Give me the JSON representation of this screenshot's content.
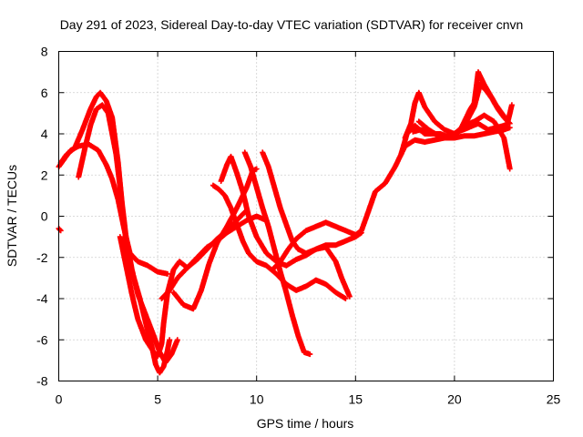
{
  "chart_data": {
    "type": "scatter",
    "title": "Day 291 of 2023, Sidereal Day-to-day VTEC variation (SDTVAR) for receiver cnvn",
    "xlabel": "GPS time / hours",
    "ylabel": "SDTVAR / TECUs",
    "xlim": [
      0,
      25
    ],
    "ylim": [
      -8,
      8
    ],
    "xticks": [
      0,
      5,
      10,
      15,
      20,
      25
    ],
    "yticks": [
      -8,
      -6,
      -4,
      -2,
      0,
      2,
      4,
      6,
      8
    ],
    "xtick_labels": [
      "0",
      "5",
      "10",
      "15",
      "20",
      "25"
    ],
    "ytick_labels": [
      "-8",
      "-6",
      "-4",
      "-2",
      "0",
      "2",
      "4",
      "6",
      "8"
    ],
    "grid": true,
    "legend": "none",
    "marker": "plus",
    "color": "#ff0000",
    "series": [
      {
        "points": [
          [
            0.0,
            -0.6
          ],
          [
            0.1,
            -0.7
          ]
        ]
      },
      {
        "points": [
          [
            0.0,
            2.4
          ],
          [
            0.3,
            2.8
          ],
          [
            0.6,
            3.2
          ],
          [
            1.0,
            3.4
          ],
          [
            1.5,
            3.5
          ],
          [
            2.0,
            3.2
          ],
          [
            2.4,
            2.5
          ],
          [
            2.7,
            1.8
          ],
          [
            3.0,
            0.8
          ],
          [
            3.3,
            -0.6
          ],
          [
            3.6,
            -1.8
          ],
          [
            4.0,
            -2.2
          ],
          [
            4.5,
            -2.4
          ],
          [
            5.0,
            -2.7
          ],
          [
            5.5,
            -2.8
          ]
        ]
      },
      {
        "points": [
          [
            0.1,
            2.6
          ],
          [
            0.4,
            3.0
          ],
          [
            0.8,
            3.3
          ],
          [
            1.2,
            4.2
          ],
          [
            1.6,
            5.2
          ],
          [
            1.9,
            5.8
          ],
          [
            2.1,
            6.0
          ],
          [
            2.4,
            5.6
          ],
          [
            2.7,
            4.8
          ],
          [
            3.0,
            2.6
          ],
          [
            3.2,
            0.6
          ],
          [
            3.4,
            -1.0
          ],
          [
            3.7,
            -2.6
          ],
          [
            4.0,
            -3.8
          ],
          [
            4.4,
            -4.8
          ],
          [
            4.8,
            -5.8
          ],
          [
            5.1,
            -6.6
          ],
          [
            5.4,
            -7.1
          ],
          [
            5.7,
            -6.7
          ],
          [
            6.0,
            -6.0
          ]
        ]
      },
      {
        "points": [
          [
            1.0,
            1.9
          ],
          [
            1.3,
            3.2
          ],
          [
            1.6,
            4.4
          ],
          [
            1.9,
            5.2
          ],
          [
            2.2,
            5.4
          ],
          [
            2.5,
            5.0
          ],
          [
            2.7,
            4.0
          ],
          [
            2.9,
            3.0
          ],
          [
            3.1,
            1.4
          ],
          [
            3.3,
            -0.4
          ],
          [
            3.5,
            -2.0
          ],
          [
            3.8,
            -3.0
          ],
          [
            4.1,
            -4.0
          ],
          [
            4.4,
            -5.2
          ],
          [
            4.7,
            -6.3
          ],
          [
            4.9,
            -7.2
          ],
          [
            5.1,
            -7.6
          ],
          [
            5.3,
            -7.3
          ],
          [
            5.5,
            -6.5
          ],
          [
            5.6,
            -6.0
          ]
        ]
      },
      {
        "points": [
          [
            3.1,
            -1.0
          ],
          [
            3.4,
            -2.4
          ],
          [
            3.7,
            -3.8
          ],
          [
            4.0,
            -5.0
          ],
          [
            4.4,
            -6.0
          ],
          [
            4.8,
            -6.6
          ],
          [
            5.0,
            -6.8
          ],
          [
            5.2,
            -6.2
          ],
          [
            5.3,
            -5.2
          ],
          [
            5.5,
            -3.7
          ],
          [
            5.8,
            -2.6
          ],
          [
            6.1,
            -2.2
          ],
          [
            6.5,
            -2.5
          ],
          [
            7.0,
            -2.1
          ],
          [
            7.5,
            -1.6
          ],
          [
            8.0,
            -1.1
          ],
          [
            8.5,
            -0.7
          ],
          [
            9.0,
            -0.2
          ],
          [
            9.4,
            0.2
          ]
        ]
      },
      {
        "points": [
          [
            5.2,
            -4.0
          ],
          [
            5.6,
            -3.6
          ],
          [
            6.0,
            -3.0
          ],
          [
            6.5,
            -2.5
          ],
          [
            7.0,
            -2.0
          ],
          [
            7.5,
            -1.5
          ],
          [
            8.0,
            -1.2
          ],
          [
            8.5,
            -0.8
          ],
          [
            9.0,
            -0.5
          ],
          [
            9.5,
            -0.2
          ],
          [
            10.0,
            0.0
          ],
          [
            10.5,
            -0.2
          ]
        ]
      },
      {
        "points": [
          [
            5.8,
            -3.7
          ],
          [
            6.3,
            -4.3
          ],
          [
            6.8,
            -4.5
          ],
          [
            7.2,
            -3.6
          ],
          [
            7.6,
            -2.3
          ],
          [
            8.0,
            -1.3
          ],
          [
            8.5,
            -0.5
          ],
          [
            9.0,
            0.4
          ],
          [
            9.5,
            1.4
          ],
          [
            9.8,
            2.2
          ],
          [
            10.0,
            2.3
          ]
        ]
      },
      {
        "points": [
          [
            7.8,
            1.5
          ],
          [
            8.1,
            1.3
          ],
          [
            8.4,
            1.0
          ],
          [
            8.7,
            0.4
          ],
          [
            9.0,
            -0.4
          ],
          [
            9.3,
            -1.2
          ],
          [
            9.6,
            -1.8
          ],
          [
            10.0,
            -2.2
          ],
          [
            10.5,
            -2.4
          ],
          [
            11.0,
            -2.8
          ],
          [
            11.5,
            -3.3
          ],
          [
            12.0,
            -3.6
          ],
          [
            12.5,
            -3.4
          ],
          [
            13.0,
            -3.1
          ],
          [
            13.5,
            -3.3
          ],
          [
            14.0,
            -3.7
          ],
          [
            14.5,
            -4.0
          ]
        ]
      },
      {
        "points": [
          [
            8.2,
            1.7
          ],
          [
            8.5,
            2.5
          ],
          [
            8.7,
            2.9
          ],
          [
            9.0,
            2.1
          ],
          [
            9.3,
            1.2
          ],
          [
            9.6,
            0.0
          ],
          [
            10.0,
            -1.0
          ],
          [
            10.5,
            -1.8
          ],
          [
            11.0,
            -2.2
          ],
          [
            11.5,
            -2.4
          ],
          [
            12.0,
            -2.1
          ],
          [
            12.5,
            -1.9
          ],
          [
            13.0,
            -1.6
          ],
          [
            13.5,
            -1.5
          ],
          [
            14.0,
            -2.2
          ],
          [
            14.3,
            -3.0
          ],
          [
            14.7,
            -3.9
          ]
        ]
      },
      {
        "points": [
          [
            9.4,
            3.1
          ],
          [
            9.7,
            2.4
          ],
          [
            10.0,
            1.4
          ],
          [
            10.3,
            0.4
          ],
          [
            10.6,
            -0.5
          ],
          [
            10.9,
            -1.6
          ],
          [
            11.2,
            -2.7
          ],
          [
            11.5,
            -3.7
          ],
          [
            11.8,
            -4.8
          ],
          [
            12.1,
            -5.8
          ],
          [
            12.4,
            -6.6
          ],
          [
            12.7,
            -6.7
          ]
        ]
      },
      {
        "points": [
          [
            10.3,
            3.1
          ],
          [
            10.6,
            2.4
          ],
          [
            10.9,
            1.4
          ],
          [
            11.2,
            0.4
          ],
          [
            11.5,
            -0.4
          ],
          [
            11.8,
            -1.2
          ],
          [
            12.1,
            -1.6
          ],
          [
            12.5,
            -1.8
          ],
          [
            13.0,
            -1.6
          ],
          [
            13.5,
            -1.4
          ],
          [
            14.0,
            -1.4
          ],
          [
            14.5,
            -1.2
          ],
          [
            15.0,
            -1.0
          ],
          [
            15.3,
            -0.8
          ]
        ]
      },
      {
        "points": [
          [
            10.8,
            -2.6
          ],
          [
            11.2,
            -2.2
          ],
          [
            11.6,
            -1.6
          ],
          [
            12.0,
            -1.1
          ],
          [
            12.5,
            -0.7
          ],
          [
            13.0,
            -0.5
          ],
          [
            13.5,
            -0.3
          ],
          [
            14.0,
            -0.5
          ],
          [
            14.5,
            -0.7
          ],
          [
            15.0,
            -0.9
          ],
          [
            15.3,
            -0.7
          ],
          [
            15.6,
            0.1
          ],
          [
            16.0,
            1.2
          ],
          [
            16.5,
            1.6
          ],
          [
            17.0,
            2.4
          ],
          [
            17.5,
            3.4
          ],
          [
            18.0,
            3.7
          ],
          [
            18.5,
            3.6
          ],
          [
            19.0,
            3.7
          ],
          [
            19.5,
            3.8
          ],
          [
            20.0,
            3.8
          ],
          [
            20.5,
            3.9
          ],
          [
            21.0,
            3.9
          ],
          [
            21.5,
            4.0
          ],
          [
            22.0,
            4.1
          ],
          [
            22.5,
            4.2
          ],
          [
            22.8,
            4.3
          ]
        ]
      },
      {
        "points": [
          [
            17.3,
            3.0
          ],
          [
            17.6,
            4.0
          ],
          [
            18.0,
            4.4
          ],
          [
            18.5,
            4.0
          ],
          [
            19.0,
            4.0
          ],
          [
            19.5,
            3.8
          ],
          [
            20.0,
            4.0
          ],
          [
            20.5,
            4.4
          ],
          [
            21.0,
            4.6
          ],
          [
            21.5,
            4.9
          ],
          [
            22.0,
            4.6
          ],
          [
            22.5,
            3.8
          ],
          [
            22.8,
            2.3
          ]
        ]
      },
      {
        "points": [
          [
            17.5,
            3.8
          ],
          [
            17.8,
            4.5
          ],
          [
            18.0,
            5.5
          ],
          [
            18.2,
            6.0
          ],
          [
            18.5,
            5.3
          ],
          [
            19.0,
            4.6
          ],
          [
            19.5,
            4.2
          ],
          [
            20.0,
            4.0
          ],
          [
            20.5,
            4.4
          ],
          [
            21.0,
            5.3
          ],
          [
            21.3,
            6.4
          ],
          [
            21.6,
            6.1
          ],
          [
            21.9,
            5.7
          ],
          [
            22.2,
            5.2
          ],
          [
            22.5,
            4.8
          ],
          [
            22.8,
            4.5
          ]
        ]
      },
      {
        "points": [
          [
            17.9,
            4.1
          ],
          [
            18.3,
            4.2
          ],
          [
            18.8,
            4.0
          ],
          [
            19.3,
            4.0
          ],
          [
            19.8,
            3.8
          ],
          [
            20.3,
            4.2
          ],
          [
            20.8,
            5.2
          ],
          [
            21.0,
            5.5
          ],
          [
            21.2,
            7.0
          ],
          [
            21.5,
            6.4
          ],
          [
            21.8,
            5.9
          ],
          [
            22.1,
            5.4
          ],
          [
            22.4,
            5.0
          ],
          [
            22.7,
            4.6
          ],
          [
            22.9,
            5.4
          ]
        ]
      },
      {
        "points": [
          [
            18.2,
            4.6
          ],
          [
            18.7,
            4.2
          ],
          [
            19.2,
            3.9
          ],
          [
            19.7,
            3.9
          ],
          [
            20.2,
            4.1
          ],
          [
            20.7,
            4.3
          ],
          [
            21.2,
            4.5
          ],
          [
            21.7,
            4.2
          ],
          [
            22.1,
            4.3
          ],
          [
            22.5,
            4.4
          ],
          [
            22.7,
            4.5
          ]
        ]
      }
    ]
  }
}
